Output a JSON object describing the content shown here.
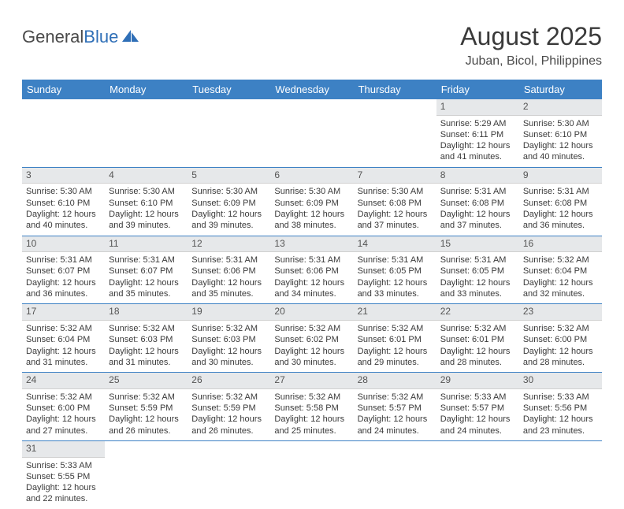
{
  "logo": {
    "word1": "General",
    "word2": "Blue"
  },
  "title": "August 2025",
  "location": "Juban, Bicol, Philippines",
  "colors": {
    "header_bg": "#3d81c4",
    "header_text": "#ffffff",
    "daynum_bg": "#e6e8ea",
    "row_border": "#3d81c4",
    "text": "#3a3a3a"
  },
  "day_headers": [
    "Sunday",
    "Monday",
    "Tuesday",
    "Wednesday",
    "Thursday",
    "Friday",
    "Saturday"
  ],
  "weeks": [
    [
      null,
      null,
      null,
      null,
      null,
      {
        "n": "1",
        "sr": "Sunrise: 5:29 AM",
        "ss": "Sunset: 6:11 PM",
        "dl1": "Daylight: 12 hours",
        "dl2": "and 41 minutes."
      },
      {
        "n": "2",
        "sr": "Sunrise: 5:30 AM",
        "ss": "Sunset: 6:10 PM",
        "dl1": "Daylight: 12 hours",
        "dl2": "and 40 minutes."
      }
    ],
    [
      {
        "n": "3",
        "sr": "Sunrise: 5:30 AM",
        "ss": "Sunset: 6:10 PM",
        "dl1": "Daylight: 12 hours",
        "dl2": "and 40 minutes."
      },
      {
        "n": "4",
        "sr": "Sunrise: 5:30 AM",
        "ss": "Sunset: 6:10 PM",
        "dl1": "Daylight: 12 hours",
        "dl2": "and 39 minutes."
      },
      {
        "n": "5",
        "sr": "Sunrise: 5:30 AM",
        "ss": "Sunset: 6:09 PM",
        "dl1": "Daylight: 12 hours",
        "dl2": "and 39 minutes."
      },
      {
        "n": "6",
        "sr": "Sunrise: 5:30 AM",
        "ss": "Sunset: 6:09 PM",
        "dl1": "Daylight: 12 hours",
        "dl2": "and 38 minutes."
      },
      {
        "n": "7",
        "sr": "Sunrise: 5:30 AM",
        "ss": "Sunset: 6:08 PM",
        "dl1": "Daylight: 12 hours",
        "dl2": "and 37 minutes."
      },
      {
        "n": "8",
        "sr": "Sunrise: 5:31 AM",
        "ss": "Sunset: 6:08 PM",
        "dl1": "Daylight: 12 hours",
        "dl2": "and 37 minutes."
      },
      {
        "n": "9",
        "sr": "Sunrise: 5:31 AM",
        "ss": "Sunset: 6:08 PM",
        "dl1": "Daylight: 12 hours",
        "dl2": "and 36 minutes."
      }
    ],
    [
      {
        "n": "10",
        "sr": "Sunrise: 5:31 AM",
        "ss": "Sunset: 6:07 PM",
        "dl1": "Daylight: 12 hours",
        "dl2": "and 36 minutes."
      },
      {
        "n": "11",
        "sr": "Sunrise: 5:31 AM",
        "ss": "Sunset: 6:07 PM",
        "dl1": "Daylight: 12 hours",
        "dl2": "and 35 minutes."
      },
      {
        "n": "12",
        "sr": "Sunrise: 5:31 AM",
        "ss": "Sunset: 6:06 PM",
        "dl1": "Daylight: 12 hours",
        "dl2": "and 35 minutes."
      },
      {
        "n": "13",
        "sr": "Sunrise: 5:31 AM",
        "ss": "Sunset: 6:06 PM",
        "dl1": "Daylight: 12 hours",
        "dl2": "and 34 minutes."
      },
      {
        "n": "14",
        "sr": "Sunrise: 5:31 AM",
        "ss": "Sunset: 6:05 PM",
        "dl1": "Daylight: 12 hours",
        "dl2": "and 33 minutes."
      },
      {
        "n": "15",
        "sr": "Sunrise: 5:31 AM",
        "ss": "Sunset: 6:05 PM",
        "dl1": "Daylight: 12 hours",
        "dl2": "and 33 minutes."
      },
      {
        "n": "16",
        "sr": "Sunrise: 5:32 AM",
        "ss": "Sunset: 6:04 PM",
        "dl1": "Daylight: 12 hours",
        "dl2": "and 32 minutes."
      }
    ],
    [
      {
        "n": "17",
        "sr": "Sunrise: 5:32 AM",
        "ss": "Sunset: 6:04 PM",
        "dl1": "Daylight: 12 hours",
        "dl2": "and 31 minutes."
      },
      {
        "n": "18",
        "sr": "Sunrise: 5:32 AM",
        "ss": "Sunset: 6:03 PM",
        "dl1": "Daylight: 12 hours",
        "dl2": "and 31 minutes."
      },
      {
        "n": "19",
        "sr": "Sunrise: 5:32 AM",
        "ss": "Sunset: 6:03 PM",
        "dl1": "Daylight: 12 hours",
        "dl2": "and 30 minutes."
      },
      {
        "n": "20",
        "sr": "Sunrise: 5:32 AM",
        "ss": "Sunset: 6:02 PM",
        "dl1": "Daylight: 12 hours",
        "dl2": "and 30 minutes."
      },
      {
        "n": "21",
        "sr": "Sunrise: 5:32 AM",
        "ss": "Sunset: 6:01 PM",
        "dl1": "Daylight: 12 hours",
        "dl2": "and 29 minutes."
      },
      {
        "n": "22",
        "sr": "Sunrise: 5:32 AM",
        "ss": "Sunset: 6:01 PM",
        "dl1": "Daylight: 12 hours",
        "dl2": "and 28 minutes."
      },
      {
        "n": "23",
        "sr": "Sunrise: 5:32 AM",
        "ss": "Sunset: 6:00 PM",
        "dl1": "Daylight: 12 hours",
        "dl2": "and 28 minutes."
      }
    ],
    [
      {
        "n": "24",
        "sr": "Sunrise: 5:32 AM",
        "ss": "Sunset: 6:00 PM",
        "dl1": "Daylight: 12 hours",
        "dl2": "and 27 minutes."
      },
      {
        "n": "25",
        "sr": "Sunrise: 5:32 AM",
        "ss": "Sunset: 5:59 PM",
        "dl1": "Daylight: 12 hours",
        "dl2": "and 26 minutes."
      },
      {
        "n": "26",
        "sr": "Sunrise: 5:32 AM",
        "ss": "Sunset: 5:59 PM",
        "dl1": "Daylight: 12 hours",
        "dl2": "and 26 minutes."
      },
      {
        "n": "27",
        "sr": "Sunrise: 5:32 AM",
        "ss": "Sunset: 5:58 PM",
        "dl1": "Daylight: 12 hours",
        "dl2": "and 25 minutes."
      },
      {
        "n": "28",
        "sr": "Sunrise: 5:32 AM",
        "ss": "Sunset: 5:57 PM",
        "dl1": "Daylight: 12 hours",
        "dl2": "and 24 minutes."
      },
      {
        "n": "29",
        "sr": "Sunrise: 5:33 AM",
        "ss": "Sunset: 5:57 PM",
        "dl1": "Daylight: 12 hours",
        "dl2": "and 24 minutes."
      },
      {
        "n": "30",
        "sr": "Sunrise: 5:33 AM",
        "ss": "Sunset: 5:56 PM",
        "dl1": "Daylight: 12 hours",
        "dl2": "and 23 minutes."
      }
    ],
    [
      {
        "n": "31",
        "sr": "Sunrise: 5:33 AM",
        "ss": "Sunset: 5:55 PM",
        "dl1": "Daylight: 12 hours",
        "dl2": "and 22 minutes."
      },
      null,
      null,
      null,
      null,
      null,
      null
    ]
  ]
}
